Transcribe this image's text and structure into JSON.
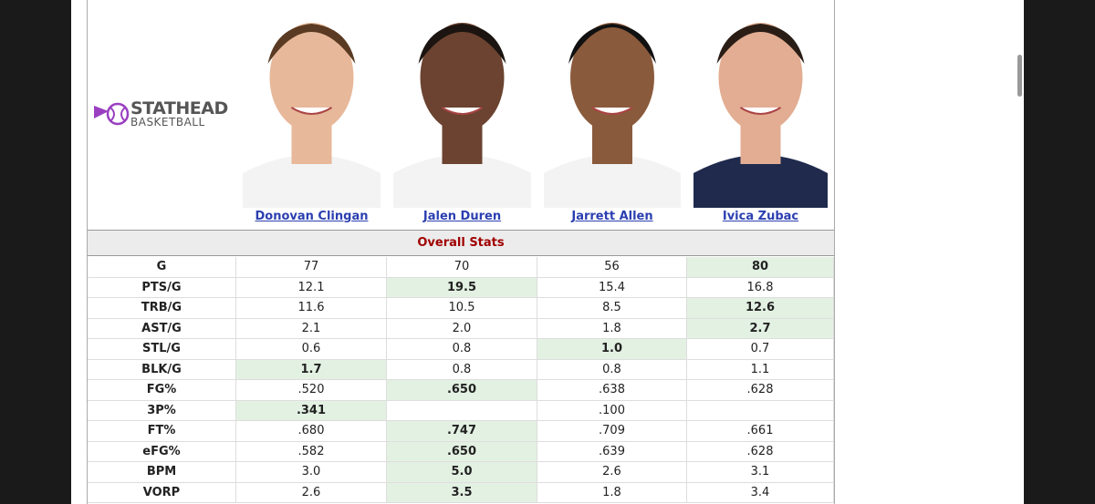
{
  "logo": {
    "name": "STATHEAD",
    "sub": "BASKETBALL"
  },
  "players": [
    "Donovan Clingan",
    "Jalen Duren",
    "Jarrett Allen",
    "Ivica Zubac"
  ],
  "section": "Overall Stats",
  "rows": [
    {
      "label": "G",
      "values": [
        "77",
        "70",
        "56",
        "80"
      ],
      "highlight": 3
    },
    {
      "label": "PTS/G",
      "values": [
        "12.1",
        "19.5",
        "15.4",
        "16.8"
      ],
      "highlight": 1
    },
    {
      "label": "TRB/G",
      "values": [
        "11.6",
        "10.5",
        "8.5",
        "12.6"
      ],
      "highlight": 3
    },
    {
      "label": "AST/G",
      "values": [
        "2.1",
        "2.0",
        "1.8",
        "2.7"
      ],
      "highlight": 3
    },
    {
      "label": "STL/G",
      "values": [
        "0.6",
        "0.8",
        "1.0",
        "0.7"
      ],
      "highlight": 2
    },
    {
      "label": "BLK/G",
      "values": [
        "1.7",
        "0.8",
        "0.8",
        "1.1"
      ],
      "highlight": 0
    },
    {
      "label": "FG%",
      "values": [
        ".520",
        ".650",
        ".638",
        ".628"
      ],
      "highlight": 1
    },
    {
      "label": "3P%",
      "values": [
        ".341",
        null,
        ".100",
        null
      ],
      "highlight": 0
    },
    {
      "label": "FT%",
      "values": [
        ".680",
        ".747",
        ".709",
        ".661"
      ],
      "highlight": 1
    },
    {
      "label": "eFG%",
      "values": [
        ".582",
        ".650",
        ".639",
        ".628"
      ],
      "highlight": 1
    },
    {
      "label": "BPM",
      "values": [
        "3.0",
        "5.0",
        "2.6",
        "3.1"
      ],
      "highlight": 1
    },
    {
      "label": "VORP",
      "values": [
        "2.6",
        "3.5",
        "1.8",
        "3.4"
      ],
      "highlight": 1
    }
  ]
}
